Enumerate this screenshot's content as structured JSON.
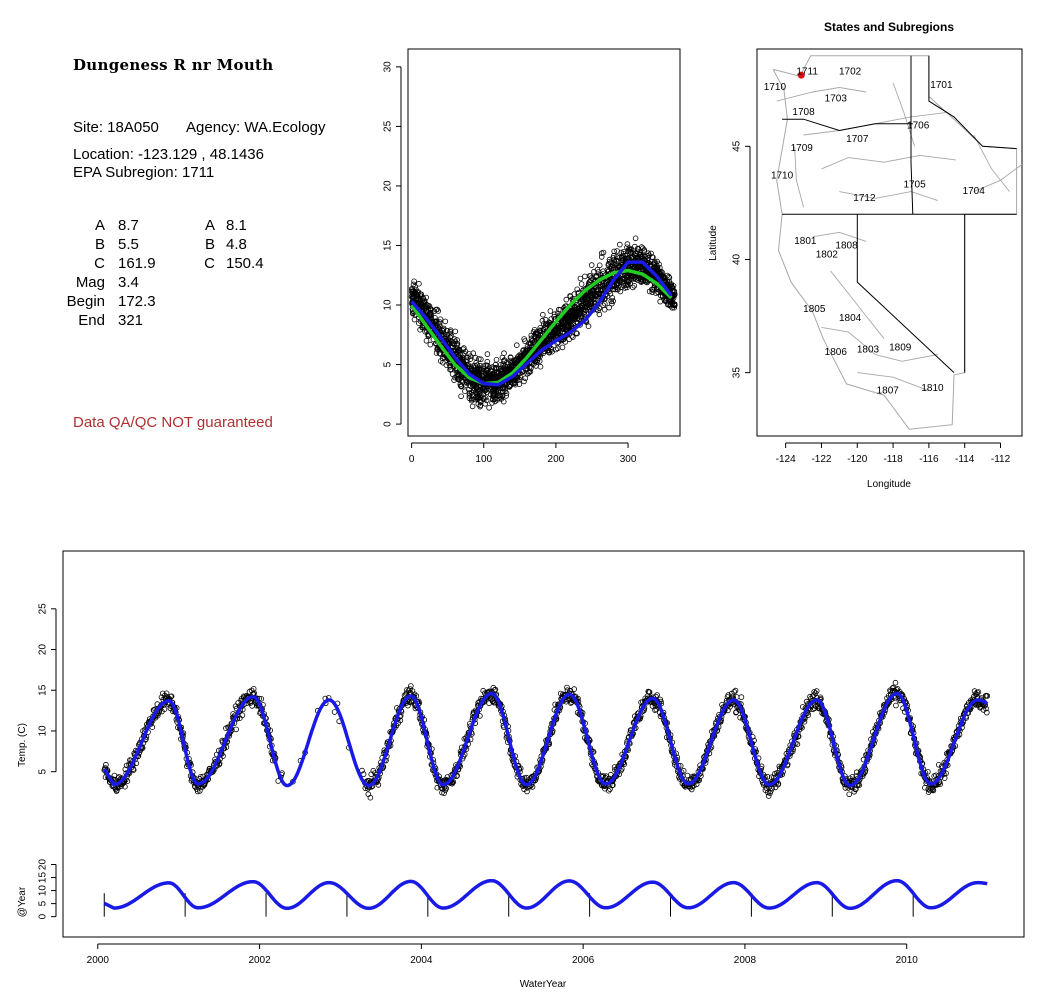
{
  "site": {
    "title": "Dungeness R nr Mouth",
    "site_line": "Site: 18A050",
    "agency_line": "Agency: WA.Ecology",
    "location_line": "Location: -123.129 , 48.1436",
    "subregion_line": "EPA Subregion: 1711",
    "qa_note": "Data QA/QC NOT guaranteed",
    "params_left": [
      {
        "label": "A",
        "value": "8.7"
      },
      {
        "label": "B",
        "value": "5.5"
      },
      {
        "label": "C",
        "value": "161.9"
      },
      {
        "label": "Mag",
        "value": "3.4"
      },
      {
        "label": "Begin",
        "value": "172.3"
      },
      {
        "label": "End",
        "value": "321"
      }
    ],
    "params_right": [
      {
        "label": "A",
        "value": "8.1"
      },
      {
        "label": "B",
        "value": "4.8"
      },
      {
        "label": "C",
        "value": "150.4"
      }
    ]
  },
  "chart_data": [
    {
      "type": "scatter",
      "title": "",
      "xlabel": "",
      "ylabel": "",
      "xlim": [
        -5,
        372
      ],
      "ylim": [
        -1,
        31.5
      ],
      "x_ticks": [
        0,
        100,
        200,
        300
      ],
      "y_ticks": [
        0,
        5,
        10,
        15,
        20,
        25,
        30
      ],
      "grid": false,
      "series": [
        {
          "role": "points",
          "color": "#000000",
          "x": [
            0,
            10,
            20,
            30,
            40,
            50,
            60,
            70,
            80,
            90,
            100,
            110,
            120,
            130,
            140,
            150,
            160,
            170,
            180,
            190,
            200,
            210,
            220,
            230,
            240,
            250,
            260,
            270,
            280,
            290,
            300,
            310,
            320,
            330,
            340,
            350,
            360
          ],
          "y": [
            10.8,
            9.8,
            9.0,
            8.2,
            7.2,
            6.2,
            5.4,
            4.6,
            4.0,
            3.6,
            3.5,
            3.4,
            3.6,
            4.0,
            4.5,
            4.9,
            5.5,
            6.1,
            6.8,
            7.4,
            7.9,
            8.4,
            9.0,
            9.6,
            10.2,
            10.8,
            11.4,
            12.0,
            12.5,
            13.0,
            13.3,
            13.5,
            13.4,
            13.0,
            12.4,
            11.6,
            10.6
          ],
          "spread": [
            1.2,
            1.6,
            1.7,
            1.8,
            1.9,
            1.9,
            1.9,
            1.8,
            1.8,
            1.7,
            1.7,
            1.6,
            1.6,
            1.5,
            1.5,
            1.5,
            1.5,
            1.5,
            1.6,
            1.6,
            1.6,
            1.7,
            1.7,
            1.7,
            1.8,
            1.8,
            1.9,
            1.9,
            1.9,
            1.8,
            1.8,
            1.7,
            1.6,
            1.5,
            1.4,
            1.3,
            1.2
          ]
        },
        {
          "role": "fit-green",
          "color": "#22cc22",
          "x": [
            0,
            20,
            40,
            60,
            80,
            100,
            120,
            140,
            160,
            180,
            200,
            220,
            240,
            260,
            280,
            300,
            320,
            340,
            360
          ],
          "y": [
            10.0,
            8.3,
            6.6,
            5.0,
            3.9,
            3.4,
            3.5,
            4.3,
            5.6,
            7.1,
            8.6,
            10.0,
            11.2,
            12.1,
            12.7,
            12.9,
            12.6,
            11.8,
            10.6
          ]
        },
        {
          "role": "fit-blue",
          "color": "#1a1ae6",
          "x": [
            0,
            20,
            40,
            60,
            80,
            100,
            120,
            140,
            160,
            180,
            200,
            220,
            240,
            260,
            280,
            300,
            320,
            340,
            360
          ],
          "y": [
            10.3,
            8.9,
            7.3,
            5.6,
            4.2,
            3.4,
            3.3,
            4.0,
            5.1,
            6.2,
            7.0,
            7.7,
            8.7,
            10.2,
            12.1,
            13.6,
            13.6,
            12.4,
            10.8
          ]
        }
      ]
    },
    {
      "type": "map",
      "title": "States and Subregions",
      "xlabel": "Longitude",
      "ylabel": "Latitude",
      "xlim": [
        -125.6,
        -110.8
      ],
      "ylim": [
        32.2,
        49.3
      ],
      "x_ticks": [
        -124,
        -122,
        -120,
        -118,
        -116,
        -114,
        -112
      ],
      "y_ticks": [
        35,
        40,
        45
      ],
      "site": {
        "lon": -123.129,
        "lat": 48.1436,
        "color": "#dd1111"
      },
      "regions": [
        {
          "label": "1702",
          "lon": -120.4,
          "lat": 48.3
        },
        {
          "label": "1701",
          "lon": -115.3,
          "lat": 47.7
        },
        {
          "label": "1703",
          "lon": -121.2,
          "lat": 47.1
        },
        {
          "label": "1710",
          "lon": -124.6,
          "lat": 47.6
        },
        {
          "label": "1711",
          "lon": -122.8,
          "lat": 48.3
        },
        {
          "label": "1708",
          "lon": -123.0,
          "lat": 46.5
        },
        {
          "label": "1706",
          "lon": -116.6,
          "lat": 45.9
        },
        {
          "label": "1707",
          "lon": -120.0,
          "lat": 45.3
        },
        {
          "label": "1709",
          "lon": -123.1,
          "lat": 44.9
        },
        {
          "label": "1710",
          "lon": -124.2,
          "lat": 43.7
        },
        {
          "label": "1705",
          "lon": -116.8,
          "lat": 43.3
        },
        {
          "label": "1704",
          "lon": -113.5,
          "lat": 43.0
        },
        {
          "label": "1712",
          "lon": -119.6,
          "lat": 42.7
        },
        {
          "label": "1801",
          "lon": -122.9,
          "lat": 40.8
        },
        {
          "label": "1808",
          "lon": -120.6,
          "lat": 40.6
        },
        {
          "label": "1802",
          "lon": -121.7,
          "lat": 40.2
        },
        {
          "label": "1805",
          "lon": -122.4,
          "lat": 37.8
        },
        {
          "label": "1804",
          "lon": -120.4,
          "lat": 37.4
        },
        {
          "label": "1806",
          "lon": -121.2,
          "lat": 35.9
        },
        {
          "label": "1803",
          "lon": -119.4,
          "lat": 36.0
        },
        {
          "label": "1809",
          "lon": -117.6,
          "lat": 36.1
        },
        {
          "label": "1807",
          "lon": -118.3,
          "lat": 34.2
        },
        {
          "label": "1810",
          "lon": -115.8,
          "lat": 34.3
        }
      ]
    },
    {
      "type": "scatter",
      "title": "",
      "xlabel": "WaterYear",
      "ylabel": "Temp. (C)",
      "ylabel2": "@Year",
      "xlim": [
        1999.57,
        2011.45
      ],
      "ylim": [
        -15.3,
        32.1
      ],
      "x_ticks": [
        2000,
        2002,
        2004,
        2006,
        2008,
        2010
      ],
      "y_ticks": [
        5,
        10,
        15,
        20,
        25
      ],
      "y_ticks_lower": [
        0,
        5,
        10,
        15,
        20
      ],
      "grid": false,
      "series": [
        {
          "role": "daily-points",
          "color": "#000000",
          "x_start": 2000.08,
          "x_end": 2011.0,
          "gap_years": [
            2002.2,
            2003.3
          ],
          "annual_peak_x": [
            2000.88,
            2001.92,
            2002.86,
            2003.87,
            2004.87,
            2005.83,
            2006.86,
            2007.86,
            2008.89,
            2009.88,
            2010.88
          ],
          "annual_peak_y": [
            13.7,
            14.2,
            13.8,
            14.3,
            14.6,
            14.5,
            14.0,
            13.8,
            13.8,
            14.6,
            13.8
          ],
          "annual_trough_x": [
            2000.2,
            2001.24,
            2002.34,
            2003.35,
            2004.27,
            2005.3,
            2006.28,
            2007.3,
            2008.3,
            2009.3,
            2010.3
          ],
          "annual_trough_y": [
            3.4,
            3.5,
            3.3,
            3.3,
            3.4,
            3.4,
            3.5,
            3.5,
            3.4,
            3.3,
            3.5
          ]
        },
        {
          "role": "fit-blue",
          "color": "#1a1ae6"
        },
        {
          "role": "annual-cycle-lower",
          "color": "#1a1ae6",
          "y_low": 3.2,
          "y_high": 13.8
        }
      ]
    }
  ]
}
